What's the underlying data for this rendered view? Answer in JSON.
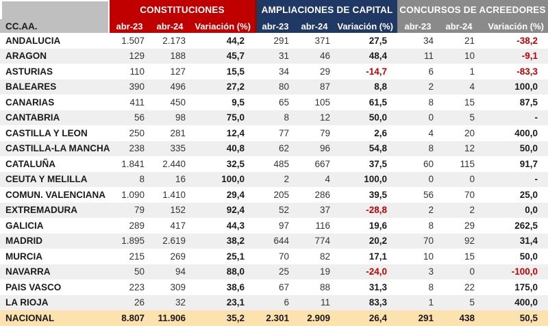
{
  "chart_data": {
    "type": "table",
    "region_column_header": "CC.AA.",
    "groups": [
      {
        "title": "CONSTITUCIONES",
        "color": "#C00000"
      },
      {
        "title": "AMPLIACIONES DE CAPITAL",
        "color": "#1F3864"
      },
      {
        "title": "CONCURSOS DE ACREEDORES",
        "color": "#8A8A8A"
      }
    ],
    "subheaders": [
      "abr-23",
      "abr-24",
      "Variación (%)"
    ],
    "rows": [
      {
        "region": "ANDALUCIA",
        "values": [
          "1.507",
          "2.173",
          "44,2",
          "291",
          "371",
          "27,5",
          "34",
          "21",
          "-38,2"
        ]
      },
      {
        "region": "ARAGON",
        "values": [
          "129",
          "188",
          "45,7",
          "31",
          "46",
          "48,4",
          "11",
          "10",
          "-9,1"
        ]
      },
      {
        "region": "ASTURIAS",
        "values": [
          "110",
          "127",
          "15,5",
          "34",
          "29",
          "-14,7",
          "6",
          "1",
          "-83,3"
        ]
      },
      {
        "region": "BALEARES",
        "values": [
          "390",
          "496",
          "27,2",
          "80",
          "87",
          "8,8",
          "2",
          "4",
          "100,0"
        ]
      },
      {
        "region": "CANARIAS",
        "values": [
          "411",
          "450",
          "9,5",
          "65",
          "105",
          "61,5",
          "8",
          "15",
          "87,5"
        ]
      },
      {
        "region": "CANTABRIA",
        "values": [
          "56",
          "98",
          "75,0",
          "8",
          "12",
          "50,0",
          "0",
          "5",
          "-"
        ]
      },
      {
        "region": "CASTILLA Y LEON",
        "values": [
          "250",
          "281",
          "12,4",
          "77",
          "79",
          "2,6",
          "4",
          "20",
          "400,0"
        ]
      },
      {
        "region": "CASTILLA-LA MANCHA",
        "values": [
          "238",
          "335",
          "40,8",
          "62",
          "96",
          "54,8",
          "8",
          "12",
          "50,0"
        ]
      },
      {
        "region": "CATALUÑA",
        "values": [
          "1.841",
          "2.440",
          "32,5",
          "485",
          "667",
          "37,5",
          "60",
          "115",
          "91,7"
        ]
      },
      {
        "region": "CEUTA Y MELILLA",
        "values": [
          "8",
          "16",
          "100,0",
          "2",
          "4",
          "100,0",
          "0",
          "0",
          "-"
        ]
      },
      {
        "region": "COMUN. VALENCIANA",
        "values": [
          "1.090",
          "1.410",
          "29,4",
          "205",
          "286",
          "39,5",
          "56",
          "70",
          "25,0"
        ]
      },
      {
        "region": "EXTREMADURA",
        "values": [
          "79",
          "152",
          "92,4",
          "52",
          "37",
          "-28,8",
          "2",
          "2",
          "0,0"
        ]
      },
      {
        "region": "GALICIA",
        "values": [
          "289",
          "417",
          "44,3",
          "97",
          "116",
          "19,6",
          "8",
          "29",
          "262,5"
        ]
      },
      {
        "region": "MADRID",
        "values": [
          "1.895",
          "2.619",
          "38,2",
          "644",
          "774",
          "20,2",
          "70",
          "92",
          "31,4"
        ]
      },
      {
        "region": "MURCIA",
        "values": [
          "215",
          "269",
          "25,1",
          "70",
          "82",
          "17,1",
          "10",
          "15",
          "50,0"
        ]
      },
      {
        "region": "NAVARRA",
        "values": [
          "50",
          "94",
          "88,0",
          "25",
          "19",
          "-24,0",
          "3",
          "0",
          "-100,0"
        ]
      },
      {
        "region": "PAIS VASCO",
        "values": [
          "223",
          "309",
          "38,6",
          "67",
          "88",
          "31,3",
          "8",
          "22",
          "175,0"
        ]
      },
      {
        "region": "LA RIOJA",
        "values": [
          "26",
          "32",
          "23,1",
          "6",
          "11",
          "83,3",
          "1",
          "5",
          "400,0"
        ]
      }
    ],
    "total_row": {
      "region": "NACIONAL",
      "values": [
        "8.807",
        "11.906",
        "35,2",
        "2.301",
        "2.909",
        "26,4",
        "291",
        "438",
        "50,5"
      ]
    }
  },
  "colors": {
    "header_red": "#C00000",
    "header_navy": "#1F3864",
    "header_gray": "#8A8A8A",
    "region_header_gray": "#BFBFBF",
    "row_stripe": "#EFEFEF",
    "total_row_bg": "#FBE2AF",
    "negative_value": "#C00000",
    "group_divider": "#7B150C"
  }
}
